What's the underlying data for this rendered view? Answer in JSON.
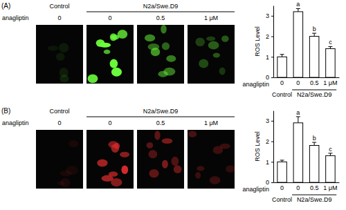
{
  "panels": [
    {
      "label": "(A)",
      "images": {
        "groups": [
          "Control",
          "N2a/Swe.D9",
          "N2a/Swe.D9",
          "N2a/Swe.D9"
        ],
        "x_label": "anagliptin",
        "categories": [
          "0",
          "0",
          "0.5",
          "1 μM"
        ],
        "color": "#6cff3c"
      }
    },
    {
      "label": "(B)",
      "images": {
        "groups": [
          "Control",
          "N2a/Swe.D9",
          "N2a/Swe.D9",
          "N2a/Swe.D9"
        ],
        "x_label": "anagliptin",
        "categories": [
          "0",
          "0",
          "0.5",
          "1 μM"
        ],
        "color": "#d42a2a"
      }
    }
  ],
  "chart_data": [
    {
      "type": "bar",
      "y_label": "ROS Level",
      "x_label": "anagliptin",
      "categories": [
        "0",
        "0",
        "0.5",
        "1 μM"
      ],
      "groups": [
        "Control",
        "N2a/Swe.D9",
        "N2a/Swe.D9",
        "N2a/Swe.D9"
      ],
      "values": [
        1.0,
        3.2,
        2.0,
        1.4
      ],
      "errors": [
        0.12,
        0.15,
        0.15,
        0.1
      ],
      "annotations": [
        null,
        "a",
        "b",
        "c"
      ],
      "color": "#ffffff",
      "ylim": [
        0,
        3.5
      ],
      "yticks": [
        0,
        1,
        2,
        3
      ]
    },
    {
      "type": "bar",
      "y_label": "ROS Level",
      "x_label": "anagliptin",
      "categories": [
        "0",
        "0",
        "0.5",
        "1 μM"
      ],
      "groups": [
        "Control",
        "N2a/Swe.D9",
        "N2a/Swe.D9",
        "N2a/Swe.D9"
      ],
      "values": [
        1.0,
        2.9,
        1.8,
        1.3
      ],
      "errors": [
        0.08,
        0.3,
        0.15,
        0.12
      ],
      "annotations": [
        null,
        "a",
        "b",
        "c"
      ],
      "color": "#ffffff",
      "ylim": [
        0,
        3.5
      ],
      "yticks": [
        0,
        1,
        2,
        3
      ]
    }
  ]
}
